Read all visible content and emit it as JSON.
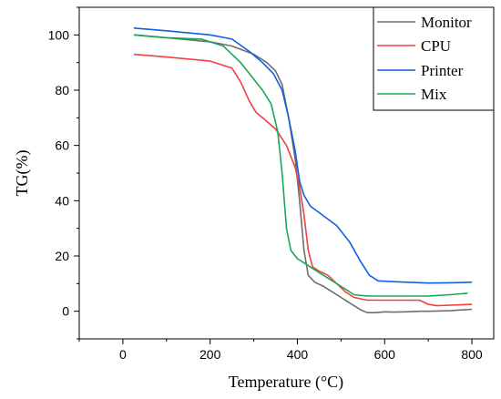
{
  "chart_data": {
    "type": "line",
    "title": "",
    "xlabel": "Temperature (°C)",
    "ylabel": "TG(%)",
    "xlim": [
      -100,
      850
    ],
    "ylim": [
      -10,
      110
    ],
    "xticks": [
      0,
      200,
      400,
      600,
      800
    ],
    "yticks": [
      0,
      20,
      40,
      60,
      80,
      100
    ],
    "grid": false,
    "legend_position": "top-right",
    "series": [
      {
        "name": "Monitor",
        "color": "#6e6e6e",
        "points": [
          [
            25,
            100
          ],
          [
            100,
            99
          ],
          [
            200,
            97.5
          ],
          [
            250,
            96
          ],
          [
            300,
            93
          ],
          [
            330,
            90
          ],
          [
            350,
            87
          ],
          [
            365,
            82
          ],
          [
            380,
            70
          ],
          [
            395,
            55
          ],
          [
            405,
            40
          ],
          [
            415,
            22
          ],
          [
            425,
            13
          ],
          [
            440,
            10.5
          ],
          [
            460,
            9
          ],
          [
            480,
            7
          ],
          [
            500,
            5
          ],
          [
            520,
            3
          ],
          [
            545,
            0.5
          ],
          [
            560,
            -0.5
          ],
          [
            580,
            -0.5
          ],
          [
            600,
            -0.2
          ],
          [
            620,
            -0.3
          ],
          [
            650,
            -0.2
          ],
          [
            680,
            0
          ],
          [
            700,
            0
          ],
          [
            750,
            0.2
          ],
          [
            800,
            0.7
          ]
        ]
      },
      {
        "name": "CPU",
        "color": "#f04040",
        "points": [
          [
            25,
            93
          ],
          [
            100,
            92
          ],
          [
            200,
            90.5
          ],
          [
            250,
            88
          ],
          [
            270,
            83
          ],
          [
            290,
            76
          ],
          [
            305,
            72
          ],
          [
            320,
            70
          ],
          [
            350,
            66
          ],
          [
            375,
            60
          ],
          [
            395,
            52
          ],
          [
            405,
            45
          ],
          [
            415,
            35
          ],
          [
            425,
            22
          ],
          [
            435,
            16
          ],
          [
            450,
            14.5
          ],
          [
            470,
            13
          ],
          [
            490,
            10
          ],
          [
            510,
            7
          ],
          [
            530,
            5
          ],
          [
            560,
            4
          ],
          [
            600,
            4
          ],
          [
            650,
            4
          ],
          [
            680,
            4
          ],
          [
            700,
            2.5
          ],
          [
            720,
            2
          ],
          [
            750,
            2.2
          ],
          [
            800,
            2.5
          ]
        ]
      },
      {
        "name": "Printer",
        "color": "#1060e0",
        "points": [
          [
            25,
            102.5
          ],
          [
            100,
            101.5
          ],
          [
            200,
            100
          ],
          [
            250,
            98.5
          ],
          [
            290,
            94
          ],
          [
            320,
            90
          ],
          [
            345,
            86
          ],
          [
            365,
            80
          ],
          [
            380,
            70
          ],
          [
            395,
            58
          ],
          [
            405,
            47
          ],
          [
            415,
            42
          ],
          [
            430,
            38
          ],
          [
            460,
            34.5
          ],
          [
            490,
            31
          ],
          [
            520,
            25
          ],
          [
            545,
            18
          ],
          [
            565,
            13
          ],
          [
            585,
            11
          ],
          [
            610,
            10.8
          ],
          [
            650,
            10.5
          ],
          [
            700,
            10.2
          ],
          [
            750,
            10.3
          ],
          [
            800,
            10.5
          ]
        ]
      },
      {
        "name": "Mix",
        "color": "#1aa55a",
        "points": [
          [
            25,
            100
          ],
          [
            100,
            99
          ],
          [
            180,
            98.5
          ],
          [
            230,
            96
          ],
          [
            270,
            90
          ],
          [
            300,
            84
          ],
          [
            320,
            80
          ],
          [
            340,
            75
          ],
          [
            355,
            65
          ],
          [
            365,
            50
          ],
          [
            375,
            30
          ],
          [
            385,
            22
          ],
          [
            400,
            19
          ],
          [
            420,
            17
          ],
          [
            440,
            15
          ],
          [
            470,
            12
          ],
          [
            490,
            10
          ],
          [
            510,
            8
          ],
          [
            530,
            6
          ],
          [
            560,
            5.5
          ],
          [
            600,
            5.5
          ],
          [
            650,
            5.5
          ],
          [
            700,
            5.5
          ],
          [
            750,
            6
          ],
          [
            790,
            6.5
          ]
        ]
      }
    ]
  }
}
